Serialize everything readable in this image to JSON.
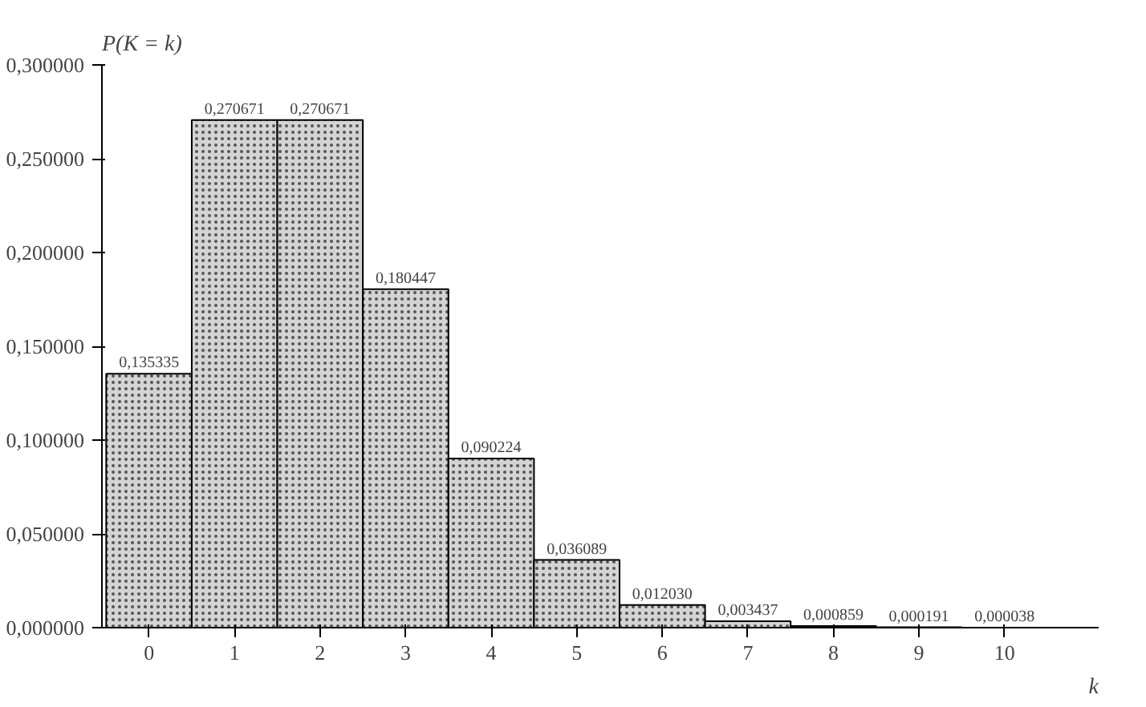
{
  "chart_data": {
    "type": "bar",
    "xlabel": "k",
    "ylabel": "P(K = k)",
    "categories": [
      "0",
      "1",
      "2",
      "3",
      "4",
      "5",
      "6",
      "7",
      "8",
      "9",
      "10"
    ],
    "values": [
      0.135335,
      0.270671,
      0.270671,
      0.180447,
      0.090224,
      0.036089,
      0.01203,
      0.003437,
      0.000859,
      0.000191,
      3.8e-05
    ],
    "value_labels": [
      "0,135335",
      "0,270671",
      "0,270671",
      "0,180447",
      "0,090224",
      "0,036089",
      "0,012030",
      "0,003437",
      "0,000859",
      "0,000191",
      "0,000038"
    ],
    "color": "#d4d4d4",
    "ylim": [
      0,
      0.3
    ],
    "yticks": [
      {
        "value": 0,
        "label": "0,000000"
      },
      {
        "value": 0.05,
        "label": "0,050000"
      },
      {
        "value": 0.1,
        "label": "0,100000"
      },
      {
        "value": 0.15,
        "label": "0,150000"
      },
      {
        "value": 0.2,
        "label": "0,200000"
      },
      {
        "value": 0.25,
        "label": "0,250000"
      },
      {
        "value": 0.3,
        "label": "0,300000"
      }
    ],
    "grid": false
  }
}
